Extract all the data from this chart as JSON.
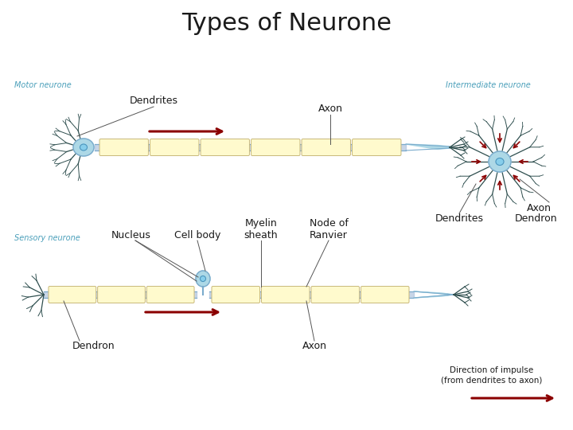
{
  "title": "Types of Neurone",
  "title_fontsize": 22,
  "title_color": "#1a1a1a",
  "background_color": "#ffffff",
  "labels": {
    "motor_neurone": "Motor neurone",
    "intermediate_neurone": "Intermediate neurone",
    "sensory_neurone": "Sensory neurone",
    "dendrites": "Dendrites",
    "axon_motor": "Axon",
    "nucleus": "Nucleus",
    "cell_body": "Cell body",
    "myelin_sheath": "Myelin\nsheath",
    "node_of_ranvier": "Node of\nRanvier",
    "axon_sensory": "Axon",
    "dendron": "Dendron",
    "axon_intermediate": "Axon",
    "dendrites_intermediate": "Dendrites",
    "dendron_intermediate": "Dendron",
    "direction": "Direction of impulse\n(from dendrites to axon)"
  },
  "label_colors": {
    "motor_neurone": "#4a9fba",
    "intermediate_neurone": "#4a9fba",
    "sensory_neurone": "#4a9fba",
    "other": "#1a1a1a",
    "direction": "#1a1a1a"
  },
  "arrow_color": "#8b0000",
  "neuron_body_color": "#add8e6",
  "myelin_color": "#fffacd",
  "axon_line_color": "#b0c4de",
  "dendrite_color": "#2f4f4f",
  "axon_border_color": "#7aabcc",
  "myelin_border_color": "#c8b87a"
}
